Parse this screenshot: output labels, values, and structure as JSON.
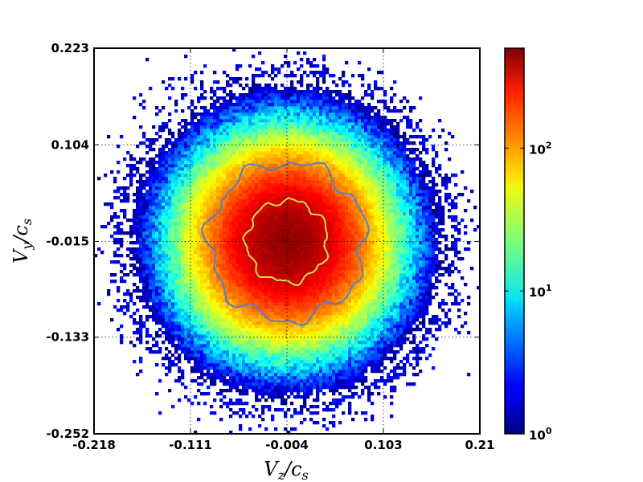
{
  "chart_data": {
    "type": "heatmap",
    "xlabel": {
      "main": "V",
      "sub": "z",
      "rest": "/c",
      "sub2": "s"
    },
    "ylabel": {
      "main": "V",
      "sub": "y",
      "rest": "/c",
      "sub2": "s"
    },
    "xlim": [
      -0.218,
      0.21
    ],
    "ylim": [
      -0.252,
      0.223
    ],
    "x_ticks": [
      -0.218,
      -0.111,
      -0.004,
      0.103,
      0.21
    ],
    "y_ticks": [
      -0.252,
      -0.133,
      -0.015,
      0.104,
      0.223
    ],
    "x_tick_labels": [
      "-0.218",
      "-0.111",
      "-0.004",
      "0.103",
      "0.21"
    ],
    "y_tick_labels": [
      "-0.252",
      "-0.133",
      "-0.015",
      "0.104",
      "0.223"
    ],
    "grid": true,
    "grid_style": "dotted",
    "colormap": "jet",
    "color_scale": "log",
    "color_range": [
      1,
      500
    ],
    "colorbar_ticks": [
      {
        "value": 1,
        "base": "10",
        "exp": "0"
      },
      {
        "value": 10,
        "base": "10",
        "exp": "1"
      },
      {
        "value": 100,
        "base": "10",
        "exp": "2"
      }
    ],
    "distribution": {
      "center": [
        -0.004,
        -0.015
      ],
      "sigma": [
        0.05,
        0.056
      ],
      "peak_count": 450
    },
    "contours": [
      {
        "level": 100,
        "color": "#4d7fd6"
      },
      {
        "level": 300,
        "color": "#d8e24a"
      }
    ]
  }
}
